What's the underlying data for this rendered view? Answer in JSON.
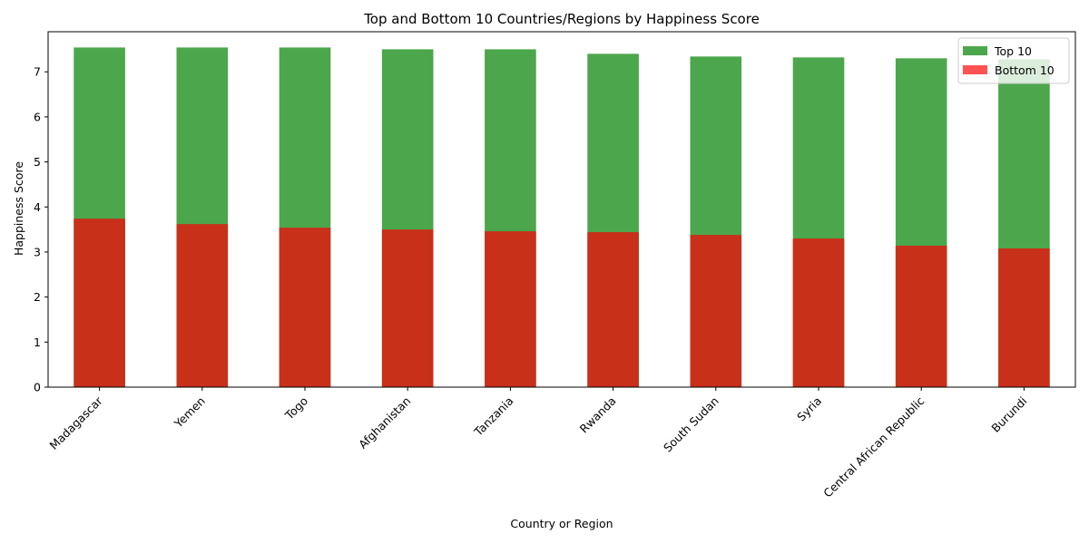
{
  "chart_data": {
    "type": "bar",
    "title": "Top and Bottom 10 Countries/Regions by Happiness Score",
    "xlabel": "Country or Region",
    "ylabel": "Happiness Score",
    "categories": [
      "Madagascar",
      "Yemen",
      "Togo",
      "Afghanistan",
      "Tanzania",
      "Rwanda",
      "South Sudan",
      "Syria",
      "Central African Republic",
      "Burundi"
    ],
    "series": [
      {
        "name": "Top 10",
        "color": "#4ca64c",
        "values": [
          7.54,
          7.54,
          7.54,
          7.5,
          7.5,
          7.4,
          7.34,
          7.32,
          7.3,
          7.28
        ]
      },
      {
        "name": "Bottom 10",
        "color": "#ff5252",
        "values": [
          3.74,
          3.62,
          3.54,
          3.5,
          3.46,
          3.44,
          3.38,
          3.3,
          3.14,
          3.08
        ]
      }
    ],
    "overlap_color": "#c8301a",
    "ylim": [
      0,
      7.89
    ],
    "yticks": [
      "0",
      "1",
      "2",
      "3",
      "4",
      "5",
      "6",
      "7"
    ],
    "legend": "top-right",
    "grid": false
  }
}
